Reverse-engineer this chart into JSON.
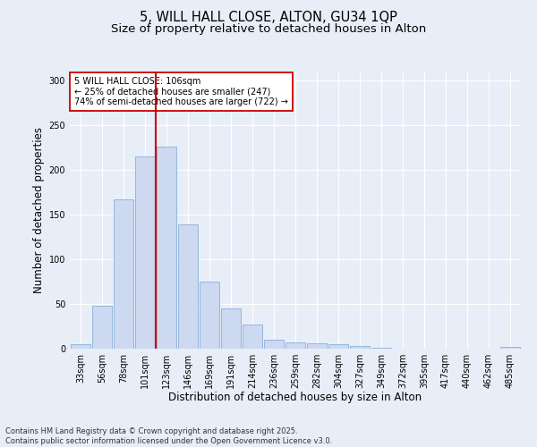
{
  "title_line1": "5, WILL HALL CLOSE, ALTON, GU34 1QP",
  "title_line2": "Size of property relative to detached houses in Alton",
  "xlabel": "Distribution of detached houses by size in Alton",
  "ylabel": "Number of detached properties",
  "categories": [
    "33sqm",
    "56sqm",
    "78sqm",
    "101sqm",
    "123sqm",
    "146sqm",
    "169sqm",
    "191sqm",
    "214sqm",
    "236sqm",
    "259sqm",
    "282sqm",
    "304sqm",
    "327sqm",
    "349sqm",
    "372sqm",
    "395sqm",
    "417sqm",
    "440sqm",
    "462sqm",
    "485sqm"
  ],
  "values": [
    5,
    48,
    167,
    215,
    226,
    139,
    75,
    45,
    27,
    10,
    7,
    6,
    5,
    3,
    1,
    0,
    0,
    0,
    0,
    0,
    2
  ],
  "bar_color": "#ccd9f0",
  "bar_edge_color": "#8ab0d8",
  "vline_x": 3.5,
  "vline_color": "#cc0000",
  "annotation_text": "5 WILL HALL CLOSE: 106sqm\n← 25% of detached houses are smaller (247)\n74% of semi-detached houses are larger (722) →",
  "annotation_box_color": "#cc0000",
  "annotation_box_facecolor": "white",
  "ylim": [
    0,
    310
  ],
  "yticks": [
    0,
    50,
    100,
    150,
    200,
    250,
    300
  ],
  "background_color": "#e8eef8",
  "grid_color": "#ffffff",
  "footer_line1": "Contains HM Land Registry data © Crown copyright and database right 2025.",
  "footer_line2": "Contains public sector information licensed under the Open Government Licence v3.0.",
  "title_fontsize": 10.5,
  "subtitle_fontsize": 9.5,
  "axis_label_fontsize": 8.5,
  "tick_fontsize": 7,
  "annotation_fontsize": 7,
  "footer_fontsize": 6
}
